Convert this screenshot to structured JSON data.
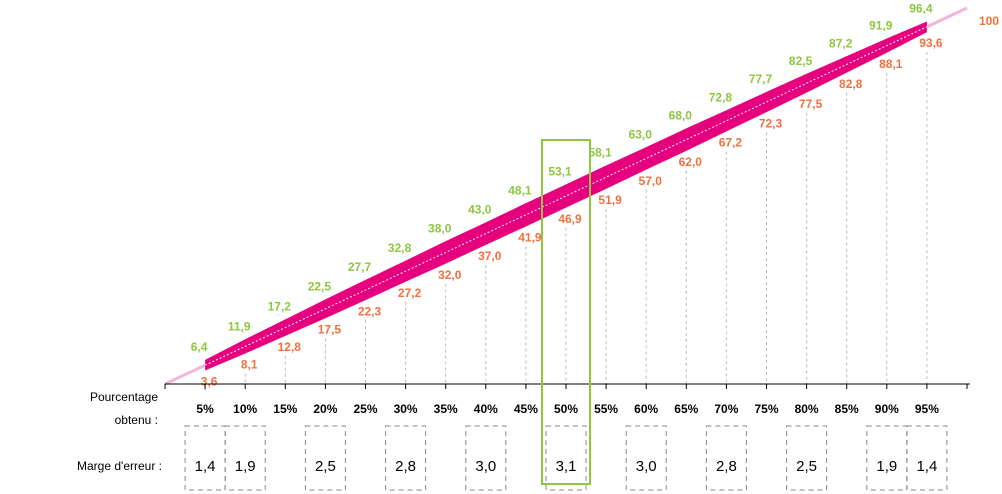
{
  "chart_data": {
    "type": "band",
    "x_label": [
      "Pourcentage",
      "obtenu :"
    ],
    "margin_label": "Marge d'erreur :",
    "categories": [
      "5%",
      "10%",
      "15%",
      "20%",
      "25%",
      "30%",
      "35%",
      "40%",
      "45%",
      "50%",
      "55%",
      "60%",
      "65%",
      "70%",
      "75%",
      "80%",
      "85%",
      "90%",
      "95%"
    ],
    "series": [
      {
        "name": "upper",
        "color": "#8dc63f",
        "values": [
          6.4,
          11.9,
          17.2,
          22.5,
          27.7,
          32.8,
          38.0,
          43.0,
          48.1,
          53.1,
          58.1,
          63.0,
          68.0,
          72.8,
          77.7,
          82.5,
          87.2,
          91.9,
          96.4
        ],
        "value_labels": [
          "6,4",
          "11,9",
          "17,2",
          "22,5",
          "27,7",
          "32,8",
          "38,0",
          "43,0",
          "48,1",
          "53,1",
          "58,1",
          "63,0",
          "68,0",
          "72,8",
          "77,7",
          "82,5",
          "87,2",
          "91,9",
          "96,4"
        ]
      },
      {
        "name": "lower",
        "color": "#f2703e",
        "values": [
          3.6,
          8.1,
          12.8,
          17.5,
          22.3,
          27.2,
          32.0,
          37.0,
          41.9,
          46.9,
          51.9,
          57.0,
          62.0,
          67.2,
          72.3,
          77.5,
          82.8,
          88.1,
          93.6
        ],
        "value_labels": [
          "3,6",
          "8,1",
          "12,8",
          "17,5",
          "22,3",
          "27,2",
          "32,0",
          "37,0",
          "41,9",
          "46,9",
          "51,9",
          "57,0",
          "62,0",
          "67,2",
          "72,3",
          "77,5",
          "82,8",
          "88,1",
          "93,6"
        ]
      }
    ],
    "band_color": "#e6007e",
    "margins": [
      1.4,
      1.9,
      null,
      2.5,
      null,
      2.8,
      null,
      3.0,
      null,
      3.1,
      null,
      3.0,
      null,
      2.8,
      null,
      2.5,
      null,
      1.9,
      1.4
    ],
    "margin_labels": [
      "1,4",
      "1,9",
      null,
      "2,5",
      null,
      "2,8",
      null,
      "3,0",
      null,
      "3,1",
      null,
      "3,0",
      null,
      "2,8",
      null,
      "2,5",
      null,
      "1,9",
      "1,4"
    ],
    "ylim": [
      0,
      100
    ],
    "yticks": [
      100
    ]
  }
}
